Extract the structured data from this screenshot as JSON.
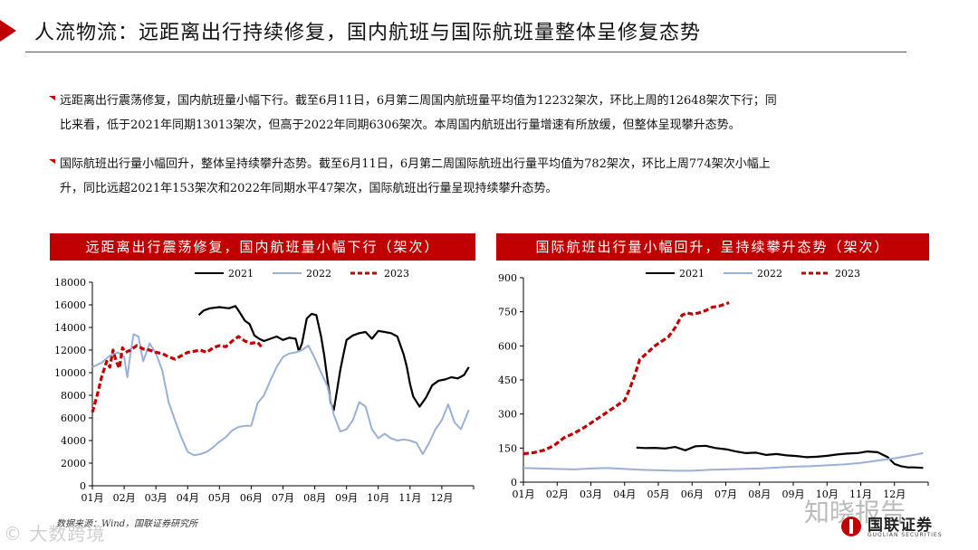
{
  "header": {
    "title": "人流物流：远距离出行持续修复，国内航班与国际航班量整体呈修复态势"
  },
  "bullets": [
    {
      "line1": "远距离出行震荡修复，国内航班量小幅下行。截至6月11日，6月第二周国内航班量平均值为12232架次，环比上周的12648架次下行；同",
      "line2": "比来看，低于2021年同期13013架次，但高于2022年同期6306架次。本周国内航班出行量增速有所放缓，但整体呈现攀升态势。"
    },
    {
      "line1": "国际航班出行量小幅回升，整体呈持续攀升态势。截至6月11日，6月第二周国际航班出行量平均值为782架次，环比上周774架次小幅上",
      "line2": "升，同比远超2021年153架次和2022年同期水平47架次，国际航班出行量呈现持续攀升态势。"
    }
  ],
  "colors": {
    "accent": "#c00000",
    "s2021": "#000000",
    "s2022": "#9bb0d8",
    "s2023": "#c00000"
  },
  "chart_data": [
    {
      "type": "line",
      "title": "远距离出行震荡修复，国内航班量小幅下行（架次）",
      "x_ticks": [
        "01月",
        "02月",
        "03月",
        "04月",
        "05月",
        "06月",
        "07月",
        "08月",
        "09月",
        "10月",
        "11月",
        "12月"
      ],
      "xlim": [
        0,
        12
      ],
      "ylim": [
        0,
        18000
      ],
      "y_ticks": [
        0,
        2000,
        4000,
        6000,
        8000,
        10000,
        12000,
        14000,
        16000,
        18000
      ],
      "legend_position": "top",
      "series": [
        {
          "name": "2021",
          "style": "solid",
          "color": "#000000",
          "x": [
            3.35,
            3.5,
            3.7,
            4.0,
            4.3,
            4.5,
            4.6,
            4.8,
            4.95,
            5.1,
            5.25,
            5.4,
            5.6,
            5.8,
            6.0,
            6.2,
            6.4,
            6.5,
            6.6,
            6.75,
            6.9,
            7.05,
            7.2,
            7.3,
            7.4,
            7.5,
            7.6,
            7.7,
            7.8,
            7.9,
            8.0,
            8.2,
            8.4,
            8.6,
            8.8,
            9.0,
            9.2,
            9.4,
            9.6,
            9.8,
            9.9,
            10.0,
            10.1,
            10.3,
            10.5,
            10.7,
            10.9,
            11.1,
            11.3,
            11.5,
            11.7,
            11.85
          ],
          "y": [
            15100,
            15500,
            15700,
            15800,
            15700,
            15900,
            15500,
            14600,
            14300,
            13300,
            13000,
            12800,
            13000,
            13200,
            12900,
            13100,
            13000,
            11900,
            12600,
            14800,
            15200,
            15100,
            13200,
            11500,
            9400,
            7400,
            6700,
            8400,
            10200,
            11600,
            12900,
            13300,
            13500,
            13600,
            13000,
            13700,
            13600,
            13500,
            13200,
            11600,
            10500,
            9000,
            7900,
            7000,
            7800,
            8900,
            9300,
            9400,
            9600,
            9500,
            9800,
            10500
          ]
        },
        {
          "name": "2022",
          "style": "solid",
          "color": "#9bb0d8",
          "x": [
            0,
            0.3,
            0.55,
            0.8,
            1.0,
            1.1,
            1.2,
            1.3,
            1.45,
            1.6,
            1.8,
            2.0,
            2.2,
            2.4,
            2.6,
            2.8,
            3.0,
            3.2,
            3.4,
            3.6,
            3.8,
            4.0,
            4.2,
            4.4,
            4.6,
            4.8,
            5.0,
            5.2,
            5.4,
            5.6,
            5.8,
            6.0,
            6.2,
            6.4,
            6.6,
            6.8,
            7.0,
            7.2,
            7.4,
            7.6,
            7.8,
            8.0,
            8.2,
            8.4,
            8.6,
            8.8,
            9.0,
            9.2,
            9.4,
            9.6,
            9.8,
            10.0,
            10.2,
            10.4,
            10.6,
            10.8,
            11.0,
            11.2,
            11.4,
            11.6,
            11.85
          ],
          "y": [
            10500,
            10900,
            11500,
            11800,
            11400,
            9600,
            11700,
            13400,
            13200,
            11000,
            12600,
            11700,
            10200,
            7400,
            5800,
            4300,
            3000,
            2700,
            2800,
            3000,
            3400,
            3900,
            4300,
            4900,
            5200,
            5300,
            5300,
            7300,
            8000,
            9300,
            10500,
            11400,
            11700,
            11800,
            12000,
            12400,
            11300,
            10000,
            8800,
            6300,
            4800,
            5000,
            5800,
            7400,
            7000,
            5000,
            4200,
            4600,
            4200,
            4000,
            4100,
            4000,
            3800,
            2800,
            3800,
            5000,
            5800,
            7200,
            5600,
            5000,
            6700
          ]
        },
        {
          "name": "2023",
          "style": "dashed",
          "color": "#c00000",
          "x": [
            0,
            0.15,
            0.3,
            0.45,
            0.55,
            0.65,
            0.75,
            0.85,
            0.95,
            1.05,
            1.2,
            1.4,
            1.6,
            1.8,
            2.0,
            2.2,
            2.4,
            2.6,
            2.8,
            3.0,
            3.2,
            3.4,
            3.6,
            3.8,
            4.0,
            4.2,
            4.4,
            4.6,
            4.8,
            5.0,
            5.2,
            5.35
          ],
          "y": [
            6500,
            8000,
            9700,
            11000,
            10500,
            12000,
            11000,
            10400,
            12200,
            11800,
            12000,
            12400,
            12100,
            12000,
            11800,
            11700,
            11400,
            11200,
            11500,
            11800,
            11900,
            12000,
            11800,
            12200,
            12400,
            12300,
            12800,
            13200,
            12800,
            12600,
            12700,
            12200
          ]
        }
      ]
    },
    {
      "type": "line",
      "title": "国际航班出行量小幅回升，呈持续攀升态势（架次）",
      "x_ticks": [
        "01月",
        "02月",
        "03月",
        "04月",
        "05月",
        "06月",
        "07月",
        "08月",
        "09月",
        "10月",
        "11月",
        "12月"
      ],
      "xlim": [
        0,
        12
      ],
      "ylim": [
        0,
        900
      ],
      "y_ticks": [
        0,
        150,
        300,
        450,
        600,
        750,
        900
      ],
      "legend_position": "top",
      "series": [
        {
          "name": "2021",
          "style": "solid",
          "color": "#000000",
          "x": [
            3.35,
            3.6,
            3.9,
            4.2,
            4.5,
            4.8,
            5.1,
            5.4,
            5.7,
            6.0,
            6.3,
            6.6,
            6.9,
            7.2,
            7.5,
            7.8,
            8.1,
            8.4,
            8.7,
            9.0,
            9.3,
            9.6,
            9.9,
            10.2,
            10.5,
            10.8,
            11.0,
            11.2,
            11.4,
            11.6,
            11.85
          ],
          "y": [
            152,
            150,
            151,
            148,
            155,
            140,
            158,
            160,
            150,
            145,
            135,
            128,
            130,
            120,
            124,
            118,
            115,
            110,
            112,
            116,
            122,
            126,
            128,
            135,
            132,
            110,
            80,
            70,
            65,
            65,
            63
          ]
        },
        {
          "name": "2022",
          "style": "solid",
          "color": "#9bb0d8",
          "x": [
            0,
            0.5,
            1.0,
            1.5,
            2.0,
            2.5,
            3.0,
            3.5,
            4.0,
            4.5,
            5.0,
            5.5,
            6.0,
            6.5,
            7.0,
            7.5,
            8.0,
            8.5,
            9.0,
            9.5,
            10.0,
            10.5,
            11.0,
            11.5,
            11.85
          ],
          "y": [
            62,
            60,
            58,
            56,
            60,
            62,
            58,
            54,
            52,
            50,
            50,
            54,
            56,
            58,
            60,
            64,
            68,
            70,
            74,
            78,
            85,
            95,
            105,
            118,
            128
          ]
        },
        {
          "name": "2023",
          "style": "dashed",
          "color": "#c00000",
          "x": [
            0,
            0.3,
            0.6,
            0.9,
            1.2,
            1.5,
            1.8,
            2.1,
            2.4,
            2.7,
            3.0,
            3.15,
            3.3,
            3.45,
            3.6,
            3.75,
            3.9,
            4.1,
            4.3,
            4.5,
            4.7,
            4.85,
            5.0,
            5.2,
            5.4,
            5.6,
            5.8,
            6.0,
            6.1
          ],
          "y": [
            125,
            130,
            140,
            160,
            195,
            215,
            240,
            270,
            300,
            330,
            360,
            410,
            470,
            540,
            560,
            580,
            600,
            620,
            640,
            680,
            735,
            745,
            740,
            745,
            755,
            770,
            775,
            785,
            790
          ]
        }
      ]
    }
  ],
  "footer": {
    "source": "数据来源：Wind，国联证券研究所",
    "watermark_left": "© 大数跨境",
    "watermark_right": "知晓报告",
    "logo_cn": "国联证券",
    "logo_en": "GUOLIAN SECURITIES"
  }
}
